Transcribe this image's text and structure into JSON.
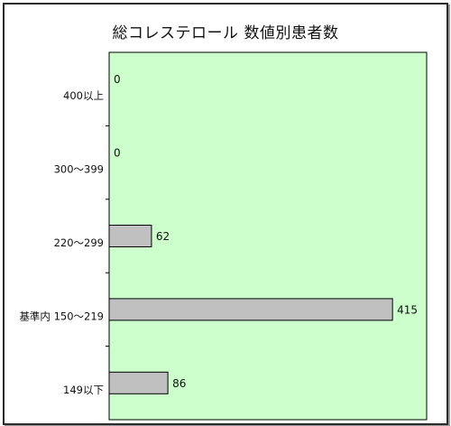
{
  "chart_data": {
    "type": "bar",
    "orientation": "horizontal",
    "title": "総コレステロール 数値別患者数",
    "categories": [
      "400以上",
      "300〜399",
      "220〜299",
      "基準内 150〜219",
      "149以下"
    ],
    "values": [
      0,
      0,
      62,
      415,
      86
    ],
    "xlim": [
      0,
      465
    ],
    "grid": false,
    "legend": "none",
    "colors": {
      "plot_background": "#ccffcc",
      "bar_fill": "#c0c0c0",
      "bar_stroke": "#000000"
    }
  }
}
